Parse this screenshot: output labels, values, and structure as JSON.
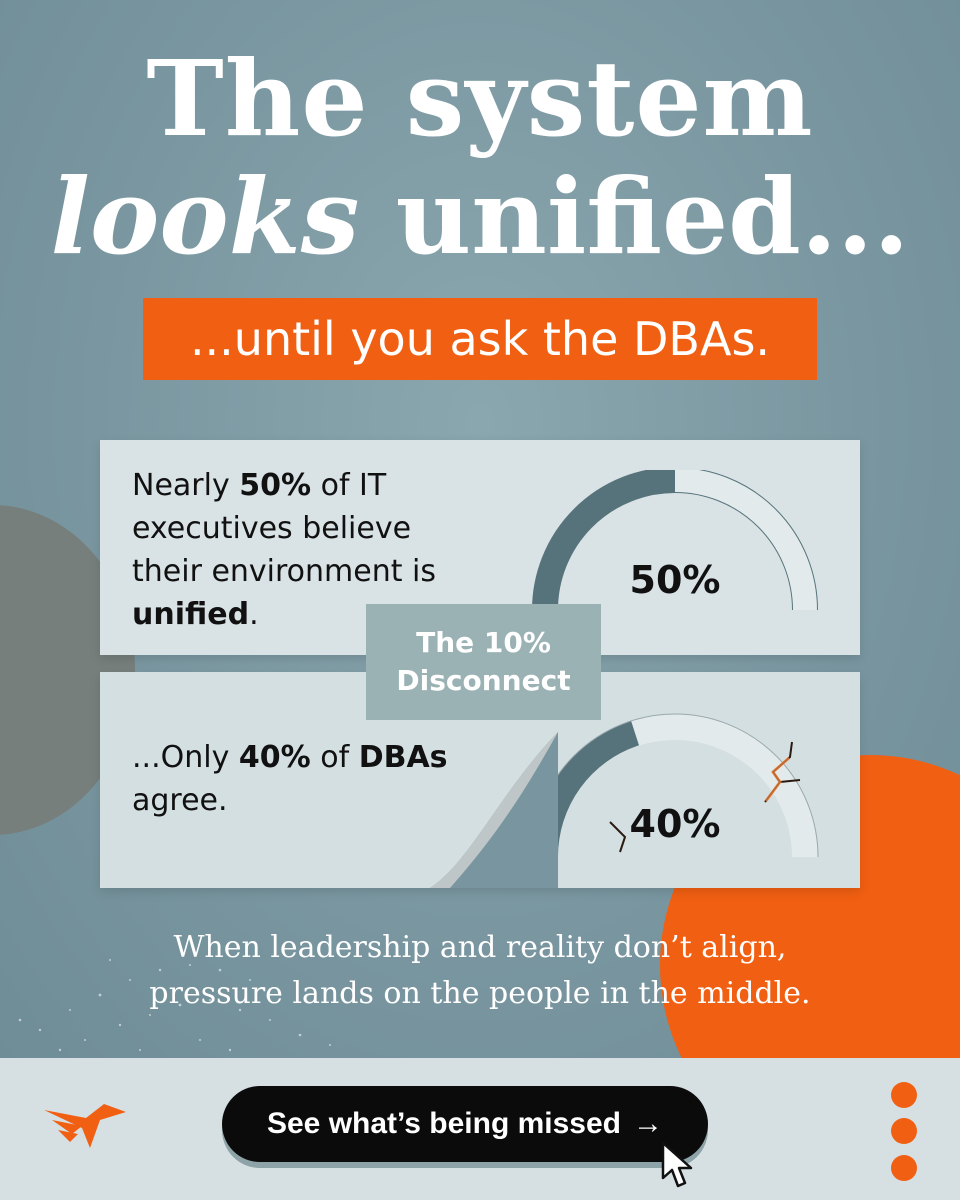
{
  "headline": {
    "line1": "The system",
    "line2_italic": "looks",
    "line2_rest": " unified..."
  },
  "tagline": "...until you ask the DBAs.",
  "cards": [
    {
      "text_parts": [
        "Nearly ",
        "50%",
        " of IT executives believe their environment is ",
        "unified",
        "."
      ],
      "gauge_value": "50%",
      "gauge_fraction": 0.5
    },
    {
      "text_parts": [
        "...Only ",
        "40%",
        " of ",
        "DBAs",
        " agree."
      ],
      "gauge_value": "40%",
      "gauge_fraction": 0.4
    }
  ],
  "disconnect": {
    "line1": "The 10%",
    "line2": "Disconnect"
  },
  "subtext": {
    "line1": "When leadership and reality don’t align,",
    "line2": "pressure lands on the people in the middle."
  },
  "cta": {
    "label": "See what’s being missed",
    "arrow": "→"
  },
  "colors": {
    "accent": "#f15f12",
    "background": "#7f9ba3",
    "card": "#d9e2e4",
    "gauge_fill": "#56737b"
  },
  "icons": {
    "logo": "bird-logo-icon",
    "cursor": "pointer-cursor-icon",
    "menu": "vertical-dots-icon"
  }
}
